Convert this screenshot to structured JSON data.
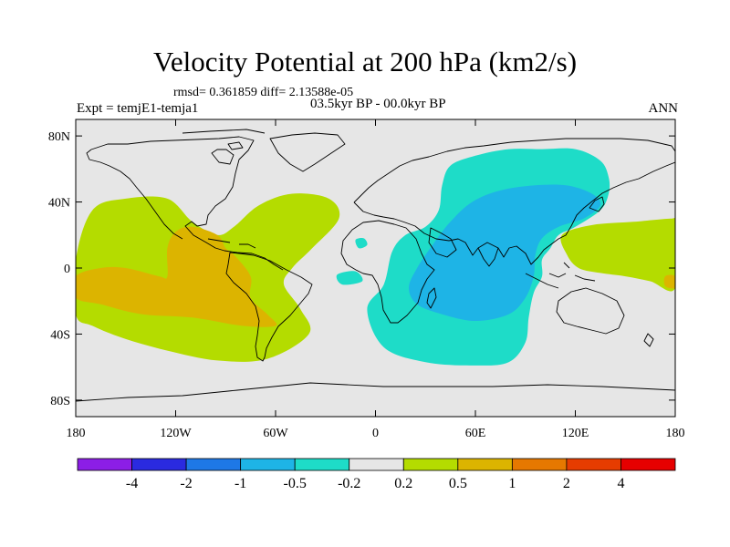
{
  "header": {
    "title": "Velocity Potential at 200 hPa (km2/s)",
    "stats": "rmsd= 0.361859 diff= 2.13588e-05",
    "experiment": "Expt = temjE1-temja1",
    "period": "03.5kyr BP - 00.0kyr BP",
    "season": "ANN"
  },
  "chart_data": {
    "type": "heatmap",
    "title": "Velocity Potential at 200 hPa (km2/s)",
    "projection": "cylindrical-equidistant",
    "xlim": [
      -180,
      180
    ],
    "ylim": [
      -90,
      90
    ],
    "x_ticks": [
      {
        "value": -180,
        "label": "180"
      },
      {
        "value": -120,
        "label": "120W"
      },
      {
        "value": -60,
        "label": "60W"
      },
      {
        "value": 0,
        "label": "0"
      },
      {
        "value": 60,
        "label": "60E"
      },
      {
        "value": 120,
        "label": "120E"
      },
      {
        "value": 180,
        "label": "180"
      }
    ],
    "y_ticks": [
      {
        "value": 80,
        "label": "80N"
      },
      {
        "value": 40,
        "label": "40N"
      },
      {
        "value": 0,
        "label": "0"
      },
      {
        "value": -40,
        "label": "40S"
      },
      {
        "value": -80,
        "label": "80S"
      }
    ],
    "colorbar": {
      "levels": [
        -4,
        -2,
        -1,
        -0.5,
        -0.2,
        0.2,
        0.5,
        1,
        2,
        4
      ],
      "labels": [
        "-4",
        "-2",
        "-1",
        "-0.5",
        "-0.2",
        "0.2",
        "0.5",
        "1",
        "2",
        "4"
      ],
      "colors": [
        "#8c1ee6",
        "#2a2ae0",
        "#1e78e6",
        "#1eb4e6",
        "#1edcc8",
        "#e6e6e6",
        "#b4dc00",
        "#dcb400",
        "#e67800",
        "#e63c00",
        "#e60000"
      ]
    },
    "regions": [
      {
        "name": "pacific-americas-positive",
        "level": "0.2 to 0.5",
        "color": "#b4dc00",
        "polygon": [
          [
            -180,
            5
          ],
          [
            -170,
            35
          ],
          [
            -150,
            42
          ],
          [
            -125,
            42
          ],
          [
            -110,
            28
          ],
          [
            -95,
            20
          ],
          [
            -85,
            25
          ],
          [
            -70,
            38
          ],
          [
            -50,
            45
          ],
          [
            -28,
            42
          ],
          [
            -22,
            30
          ],
          [
            -38,
            12
          ],
          [
            -50,
            0
          ],
          [
            -55,
            -10
          ],
          [
            -45,
            -25
          ],
          [
            -40,
            -40
          ],
          [
            -65,
            -55
          ],
          [
            -95,
            -56
          ],
          [
            -125,
            -50
          ],
          [
            -150,
            -43
          ],
          [
            -170,
            -35
          ],
          [
            -180,
            -28
          ]
        ]
      },
      {
        "name": "pacific-americas-core",
        "level": "0.5 to 1",
        "color": "#dcb400",
        "polygon": [
          [
            -180,
            -5
          ],
          [
            -165,
            0
          ],
          [
            -150,
            0
          ],
          [
            -130,
            -5
          ],
          [
            -125,
            -5
          ],
          [
            -125,
            12
          ],
          [
            -120,
            22
          ],
          [
            -110,
            25
          ],
          [
            -95,
            20
          ],
          [
            -90,
            12
          ],
          [
            -85,
            8
          ],
          [
            -75,
            -5
          ],
          [
            -75,
            -18
          ],
          [
            -65,
            -28
          ],
          [
            -60,
            -35
          ],
          [
            -80,
            -35
          ],
          [
            -110,
            -30
          ],
          [
            -140,
            -28
          ],
          [
            -165,
            -22
          ],
          [
            -180,
            -18
          ]
        ]
      },
      {
        "name": "indian-ocean-negative",
        "level": "-0.5 to -0.2",
        "color": "#1edcc8",
        "polygon": [
          [
            -5,
            -25
          ],
          [
            5,
            -10
          ],
          [
            10,
            10
          ],
          [
            18,
            20
          ],
          [
            30,
            25
          ],
          [
            38,
            35
          ],
          [
            40,
            50
          ],
          [
            45,
            62
          ],
          [
            60,
            68
          ],
          [
            80,
            72
          ],
          [
            100,
            72
          ],
          [
            120,
            72
          ],
          [
            135,
            65
          ],
          [
            140,
            55
          ],
          [
            140,
            45
          ],
          [
            135,
            35
          ],
          [
            120,
            25
          ],
          [
            110,
            20
          ],
          [
            105,
            12
          ],
          [
            100,
            5
          ],
          [
            100,
            -5
          ],
          [
            95,
            -15
          ],
          [
            92,
            -30
          ],
          [
            90,
            -45
          ],
          [
            80,
            -57
          ],
          [
            60,
            -59
          ],
          [
            30,
            -57
          ],
          [
            5,
            -48
          ]
        ]
      },
      {
        "name": "indian-ocean-core",
        "level": "-1 to -0.5",
        "color": "#1eb4e6",
        "polygon": [
          [
            20,
            -12
          ],
          [
            25,
            0
          ],
          [
            35,
            15
          ],
          [
            45,
            28
          ],
          [
            58,
            40
          ],
          [
            75,
            47
          ],
          [
            95,
            50
          ],
          [
            115,
            50
          ],
          [
            130,
            45
          ],
          [
            135,
            38
          ],
          [
            125,
            30
          ],
          [
            110,
            25
          ],
          [
            100,
            18
          ],
          [
            96,
            8
          ],
          [
            95,
            -5
          ],
          [
            90,
            -18
          ],
          [
            80,
            -28
          ],
          [
            60,
            -32
          ],
          [
            40,
            -28
          ],
          [
            25,
            -22
          ]
        ]
      },
      {
        "name": "west-pacific-positive",
        "level": "0.2 to 0.5",
        "color": "#b4dc00",
        "polygon": [
          [
            112,
            20
          ],
          [
            130,
            26
          ],
          [
            155,
            28
          ],
          [
            178,
            30
          ],
          [
            180,
            28
          ],
          [
            180,
            -12
          ],
          [
            165,
            -8
          ],
          [
            150,
            -5
          ],
          [
            135,
            -3
          ],
          [
            122,
            0
          ],
          [
            115,
            8
          ]
        ]
      },
      {
        "name": "west-africa-small",
        "level": "-0.5 to -0.2",
        "color": "#1edcc8",
        "polygon": [
          [
            -12,
            17
          ],
          [
            -7,
            18
          ],
          [
            -5,
            14
          ],
          [
            -10,
            12
          ]
        ]
      },
      {
        "name": "gulf-of-guinea-small",
        "level": "-0.5 to -0.2",
        "color": "#1edcc8",
        "polygon": [
          [
            -23,
            -4
          ],
          [
            -12,
            -2
          ],
          [
            -8,
            -8
          ],
          [
            -20,
            -10
          ]
        ]
      },
      {
        "name": "dateline-spot",
        "level": "0.5 to 1",
        "color": "#dcb400",
        "polygon": [
          [
            174,
            -5
          ],
          [
            180,
            -5
          ],
          [
            180,
            -12
          ],
          [
            174,
            -11
          ]
        ]
      }
    ]
  }
}
